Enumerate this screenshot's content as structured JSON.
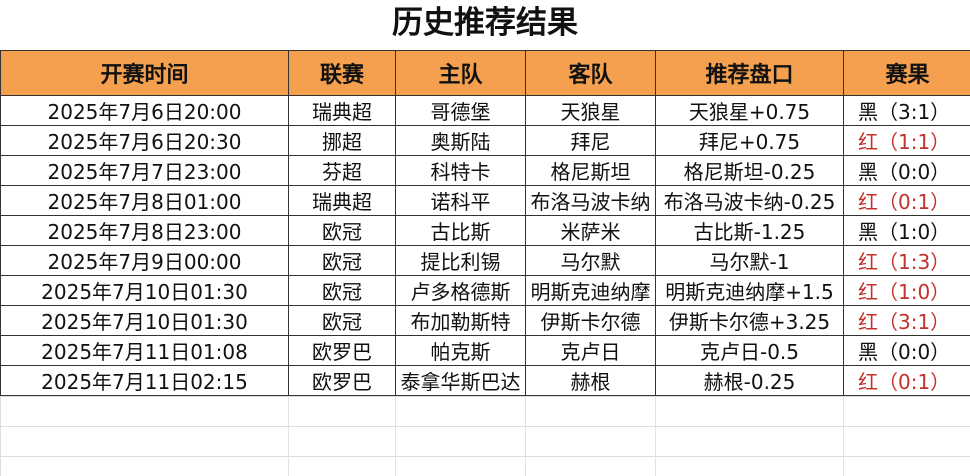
{
  "title": "历史推荐结果",
  "headers": [
    "开赛时间",
    "联赛",
    "主队",
    "客队",
    "推荐盘口",
    "赛果"
  ],
  "colors": {
    "header": "#F4A04F",
    "red": "#c4302b",
    "black": "#111111"
  },
  "rows": [
    {
      "time": "2025年7月6日20:00",
      "league": "瑞典超",
      "home": "哥德堡",
      "away": "天狼星",
      "pick": "天狼星+0.75",
      "result": "黑（3:1）",
      "color": "black"
    },
    {
      "time": "2025年7月6日20:30",
      "league": "挪超",
      "home": "奥斯陆",
      "away": "拜尼",
      "pick": "拜尼+0.75",
      "result": "红（1:1）",
      "color": "red"
    },
    {
      "time": "2025年7月7日23:00",
      "league": "芬超",
      "home": "科特卡",
      "away": "格尼斯坦",
      "pick": "格尼斯坦-0.25",
      "result": "黑（0:0）",
      "color": "black"
    },
    {
      "time": "2025年7月8日01:00",
      "league": "瑞典超",
      "home": "诺科平",
      "away": "布洛马波卡纳",
      "pick": "布洛马波卡纳-0.25",
      "result": "红（0:1）",
      "color": "red"
    },
    {
      "time": "2025年7月8日23:00",
      "league": "欧冠",
      "home": "古比斯",
      "away": "米萨米",
      "pick": "古比斯-1.25",
      "result": "黑（1:0）",
      "color": "black"
    },
    {
      "time": "2025年7月9日00:00",
      "league": "欧冠",
      "home": "提比利锡",
      "away": "马尔默",
      "pick": "马尔默-1",
      "result": "红（1:3）",
      "color": "red"
    },
    {
      "time": "2025年7月10日01:30",
      "league": "欧冠",
      "home": "卢多格德斯",
      "away": "明斯克迪纳摩",
      "pick": "明斯克迪纳摩+1.5",
      "result": "红（1:0）",
      "color": "red"
    },
    {
      "time": "2025年7月10日01:30",
      "league": "欧冠",
      "home": "布加勒斯特",
      "away": "伊斯卡尔德",
      "pick": "伊斯卡尔德+3.25",
      "result": "红（3:1）",
      "color": "red"
    },
    {
      "time": "2025年7月11日01:08",
      "league": "欧罗巴",
      "home": "帕克斯",
      "away": "克卢日",
      "pick": "克卢日-0.5",
      "result": "黑（0:0）",
      "color": "black"
    },
    {
      "time": "2025年7月11日02:15",
      "league": "欧罗巴",
      "home": "泰拿华斯巴达",
      "away": "赫根",
      "pick": "赫根-0.25",
      "result": "红（0:1）",
      "color": "red"
    }
  ]
}
